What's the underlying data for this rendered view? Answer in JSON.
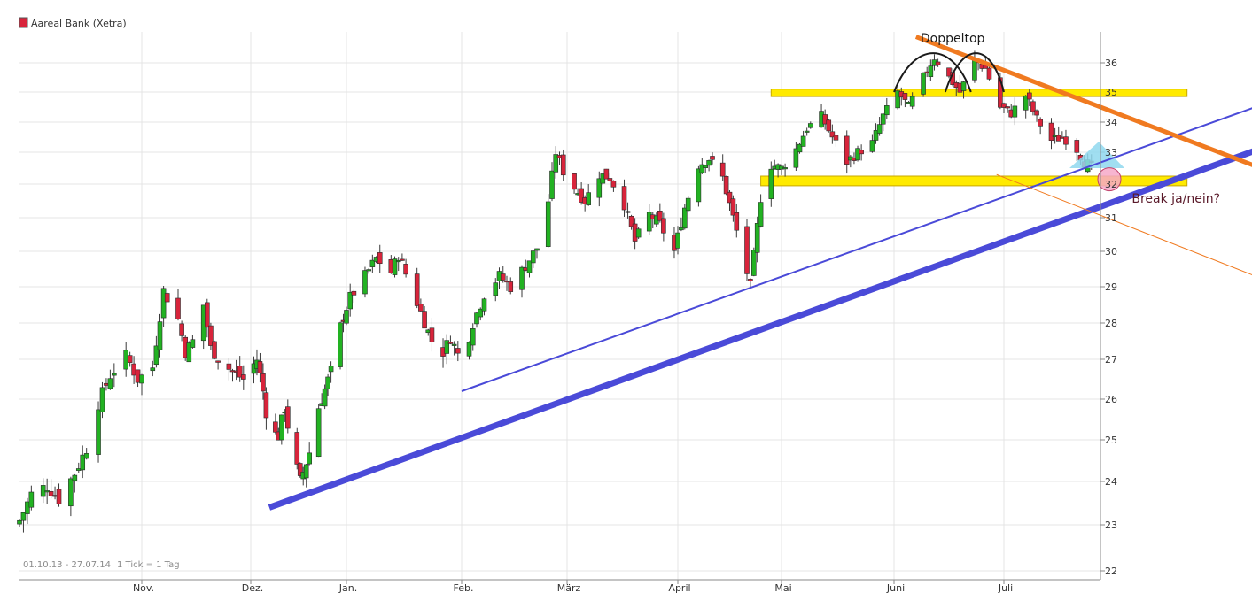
{
  "colors": {
    "up": "#22b222",
    "down": "#d8243b",
    "wick": "#3a3a3a",
    "support_band": "#ffea00",
    "support_band_stroke": "#c8a800",
    "trend_primary": "#4a4ad8",
    "trend_secondary": "#4a4ad8",
    "resistance_trend": "#f07a20",
    "triangle": "#8fd8ef",
    "break_circle": "#f6a8c8",
    "annotation_text": "#5a1a2a",
    "grid": "#e4e4e4"
  },
  "chart_data": {
    "type": "candlestick",
    "title": "Aareal Bank (Xetra)",
    "period_label": "01.10.13 - 27.07.14",
    "tick_label": "1 Tick = 1 Tag",
    "x_range": [
      "2013-10-01",
      "2014-07-27"
    ],
    "y_range": [
      22,
      37
    ],
    "y_axis_position": "right",
    "grid": true,
    "y_ticks": [
      22,
      23,
      24,
      25,
      26,
      27,
      28,
      29,
      30,
      31,
      32,
      33,
      34,
      35,
      36
    ],
    "x_ticks": [
      {
        "label": "Nov.",
        "date": "2013-11-01"
      },
      {
        "label": "Dez.",
        "date": "2013-12-01"
      },
      {
        "label": "Jan.",
        "date": "2014-01-01"
      },
      {
        "label": "Feb.",
        "date": "2014-02-01"
      },
      {
        "label": "März",
        "date": "2014-03-01"
      },
      {
        "label": "April",
        "date": "2014-04-01"
      },
      {
        "label": "Mai",
        "date": "2014-05-01"
      },
      {
        "label": "Juni",
        "date": "2014-06-01"
      },
      {
        "label": "Juli",
        "date": "2014-07-01"
      }
    ],
    "close_path": [
      [
        "2013-10-01",
        23.1
      ],
      [
        "2013-10-04",
        23.7
      ],
      [
        "2013-10-08",
        23.9
      ],
      [
        "2013-10-11",
        23.6
      ],
      [
        "2013-10-15",
        24.2
      ],
      [
        "2013-10-18",
        24.8
      ],
      [
        "2013-10-21",
        25.9
      ],
      [
        "2013-10-24",
        26.6
      ],
      [
        "2013-10-28",
        27.1
      ],
      [
        "2013-10-31",
        26.5
      ],
      [
        "2013-11-04",
        26.8
      ],
      [
        "2013-11-07",
        28.9
      ],
      [
        "2013-11-11",
        28.1
      ],
      [
        "2013-11-13",
        27.2
      ],
      [
        "2013-11-15",
        27.5
      ],
      [
        "2013-11-18",
        28.5
      ],
      [
        "2013-11-20",
        27.3
      ],
      [
        "2013-11-23",
        26.9
      ],
      [
        "2013-11-26",
        26.7
      ],
      [
        "2013-11-29",
        26.5
      ],
      [
        "2013-12-03",
        27.0
      ],
      [
        "2013-12-05",
        26.2
      ],
      [
        "2013-12-07",
        25.2
      ],
      [
        "2013-12-10",
        25.1
      ],
      [
        "2013-12-12",
        25.8
      ],
      [
        "2013-12-14",
        24.9
      ],
      [
        "2013-12-17",
        24.0
      ],
      [
        "2013-12-20",
        24.7
      ],
      [
        "2013-12-23",
        25.8
      ],
      [
        "2013-12-27",
        26.7
      ],
      [
        "2013-12-30",
        27.9
      ],
      [
        "2014-01-02",
        28.7
      ],
      [
        "2014-01-06",
        29.3
      ],
      [
        "2014-01-09",
        29.8
      ],
      [
        "2014-01-13",
        29.4
      ],
      [
        "2014-01-15",
        29.9
      ],
      [
        "2014-01-18",
        29.1
      ],
      [
        "2014-01-21",
        28.3
      ],
      [
        "2014-01-24",
        27.5
      ],
      [
        "2014-01-27",
        27.2
      ],
      [
        "2014-01-29",
        27.6
      ],
      [
        "2014-02-01",
        26.9
      ],
      [
        "2014-02-04",
        28.0
      ],
      [
        "2014-02-07",
        28.8
      ],
      [
        "2014-02-11",
        29.3
      ],
      [
        "2014-02-14",
        29.0
      ],
      [
        "2014-02-18",
        29.6
      ],
      [
        "2014-02-21",
        30.1
      ],
      [
        "2014-02-24",
        31.5
      ],
      [
        "2014-02-26",
        33.0
      ],
      [
        "2014-02-28",
        32.4
      ],
      [
        "2014-03-03",
        31.9
      ],
      [
        "2014-03-06",
        31.5
      ],
      [
        "2014-03-10",
        32.3
      ],
      [
        "2014-03-13",
        32.2
      ],
      [
        "2014-03-17",
        31.4
      ],
      [
        "2014-03-20",
        30.3
      ],
      [
        "2014-03-24",
        31.1
      ],
      [
        "2014-03-27",
        30.8
      ],
      [
        "2014-03-31",
        30.0
      ],
      [
        "2014-04-03",
        31.3
      ],
      [
        "2014-04-07",
        32.6
      ],
      [
        "2014-04-10",
        32.8
      ],
      [
        "2014-04-14",
        32.2
      ],
      [
        "2014-04-17",
        31.0
      ],
      [
        "2014-04-22",
        29.0
      ],
      [
        "2014-04-25",
        31.6
      ],
      [
        "2014-04-28",
        32.6
      ],
      [
        "2014-05-01",
        32.5
      ],
      [
        "2014-05-05",
        33.1
      ],
      [
        "2014-05-08",
        33.8
      ],
      [
        "2014-05-12",
        34.2
      ],
      [
        "2014-05-15",
        33.5
      ],
      [
        "2014-05-19",
        32.7
      ],
      [
        "2014-05-22",
        33.0
      ],
      [
        "2014-05-26",
        33.3
      ],
      [
        "2014-05-29",
        34.2
      ],
      [
        "2014-06-02",
        35.0
      ],
      [
        "2014-06-05",
        34.5
      ],
      [
        "2014-06-09",
        35.5
      ],
      [
        "2014-06-12",
        36.2
      ],
      [
        "2014-06-16",
        35.5
      ],
      [
        "2014-06-19",
        35.0
      ],
      [
        "2014-06-23",
        36.1
      ],
      [
        "2014-06-26",
        35.8
      ],
      [
        "2014-06-30",
        34.5
      ],
      [
        "2014-07-03",
        34.3
      ],
      [
        "2014-07-07",
        34.9
      ],
      [
        "2014-07-10",
        34.1
      ],
      [
        "2014-07-14",
        33.4
      ],
      [
        "2014-07-17",
        33.5
      ],
      [
        "2014-07-20",
        33.3
      ],
      [
        "2014-07-23",
        32.7
      ],
      [
        "2014-07-27",
        32.4
      ]
    ],
    "annotations": [
      {
        "kind": "text",
        "text": "Doppeltop",
        "date": "2014-06-17",
        "price": 36.75
      },
      {
        "kind": "text",
        "text": "Break ja/nein?",
        "date": "2014-08-05",
        "price": 31.45
      },
      {
        "kind": "arch",
        "from": "2014-06-01",
        "peak": "2014-06-12",
        "to": "2014-06-22",
        "base": 35.0,
        "top": 36.5
      },
      {
        "kind": "arch",
        "from": "2014-06-15",
        "peak": "2014-06-24",
        "to": "2014-07-01",
        "base": 35.0,
        "top": 36.5
      },
      {
        "kind": "band",
        "from": "2014-04-28",
        "to": "2014-08-20",
        "low": 34.85,
        "high": 35.1
      },
      {
        "kind": "band",
        "from": "2014-04-25",
        "to": "2014-08-20",
        "low": 31.95,
        "high": 32.25
      },
      {
        "kind": "trendline",
        "style": "thick",
        "start": [
          "2013-12-07",
          23.4
        ],
        "end": [
          "2014-09-30",
          34.05
        ]
      },
      {
        "kind": "trendline",
        "style": "thin",
        "start": [
          "2014-02-01",
          26.2
        ],
        "end": [
          "2014-09-30",
          35.5
        ]
      },
      {
        "kind": "trendline",
        "style": "resistance",
        "start": [
          "2014-06-07",
          36.95
        ],
        "end": [
          "2014-09-30",
          31.6
        ]
      },
      {
        "kind": "trendline",
        "style": "resistance-extension",
        "start": [
          "2014-06-29",
          32.3
        ],
        "end": [
          "2014-09-30",
          28.4
        ]
      },
      {
        "kind": "triangle",
        "points": [
          [
            "2014-07-19",
            32.5
          ],
          [
            "2014-07-27",
            33.35
          ],
          [
            "2014-08-03",
            32.5
          ]
        ]
      },
      {
        "kind": "circle",
        "date": "2014-07-27",
        "price": 32.15
      }
    ]
  }
}
